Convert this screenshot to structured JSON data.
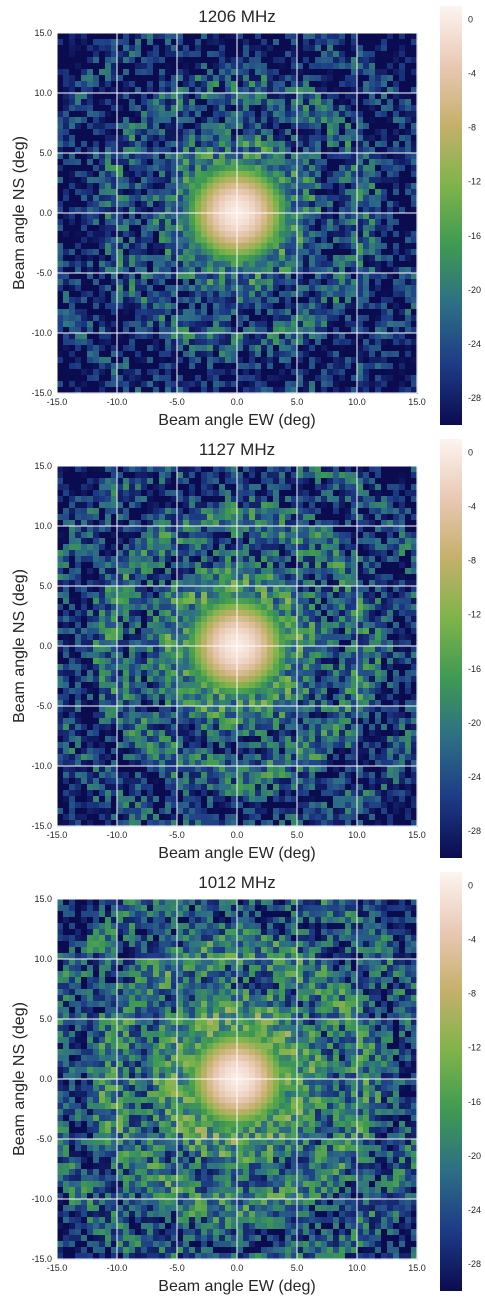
{
  "colors": {
    "background": "#ffffff",
    "grid": "#ffffff",
    "colormap": [
      "#0b0b50",
      "#1d3b86",
      "#2d6e86",
      "#3e9a52",
      "#7fb34a",
      "#c4b06a",
      "#e9c8b4",
      "#fdf4f1"
    ]
  },
  "chart_data": [
    {
      "type": "heatmap",
      "title": "1206 MHz",
      "xlabel": "Beam angle EW (deg)",
      "ylabel": "Beam angle NS (deg)",
      "x_ticks": [
        "-15.0",
        "-10.0",
        "-5.0",
        "0.0",
        "5.0",
        "10.0",
        "15.0"
      ],
      "y_ticks": [
        "15.0",
        "10.0",
        "5.0",
        "0.0",
        "-5.0",
        "-10.0",
        "-15.0"
      ],
      "xlim": [
        -15,
        15
      ],
      "ylim": [
        -15,
        15
      ],
      "zlim": [
        -30,
        1
      ],
      "colorbar_ticks": [
        "0",
        "-4",
        "-8",
        "-12",
        "-16",
        "-20",
        "-24",
        "-28"
      ],
      "grid": true,
      "main_lobe": {
        "x": 0,
        "y": 0,
        "peak_db": 0
      },
      "sidelobe_level_db": -18
    },
    {
      "type": "heatmap",
      "title": "1127 MHz",
      "xlabel": "Beam angle EW (deg)",
      "ylabel": "Beam angle NS (deg)",
      "x_ticks": [
        "-15.0",
        "-10.0",
        "-5.0",
        "0.0",
        "5.0",
        "10.0",
        "15.0"
      ],
      "y_ticks": [
        "15.0",
        "10.0",
        "5.0",
        "0.0",
        "-5.0",
        "-10.0",
        "-15.0"
      ],
      "xlim": [
        -15,
        15
      ],
      "ylim": [
        -15,
        15
      ],
      "zlim": [
        -30,
        1
      ],
      "colorbar_ticks": [
        "0",
        "-4",
        "-8",
        "-12",
        "-16",
        "-20",
        "-24",
        "-28"
      ],
      "grid": true,
      "main_lobe": {
        "x": 0,
        "y": 0,
        "peak_db": 0
      },
      "sidelobe_level_db": -16
    },
    {
      "type": "heatmap",
      "title": "1012 MHz",
      "xlabel": "Beam angle EW (deg)",
      "ylabel": "Beam angle NS (deg)",
      "x_ticks": [
        "-15.0",
        "-10.0",
        "-5.0",
        "0.0",
        "5.0",
        "10.0",
        "15.0"
      ],
      "y_ticks": [
        "15.0",
        "10.0",
        "5.0",
        "0.0",
        "-5.0",
        "-10.0",
        "-15.0"
      ],
      "xlim": [
        -15,
        15
      ],
      "ylim": [
        -15,
        15
      ],
      "zlim": [
        -30,
        1
      ],
      "colorbar_ticks": [
        "0",
        "-4",
        "-8",
        "-12",
        "-16",
        "-20",
        "-24",
        "-28"
      ],
      "grid": true,
      "main_lobe": {
        "x": 0,
        "y": 0,
        "peak_db": 0
      },
      "sidelobe_level_db": -14
    }
  ]
}
